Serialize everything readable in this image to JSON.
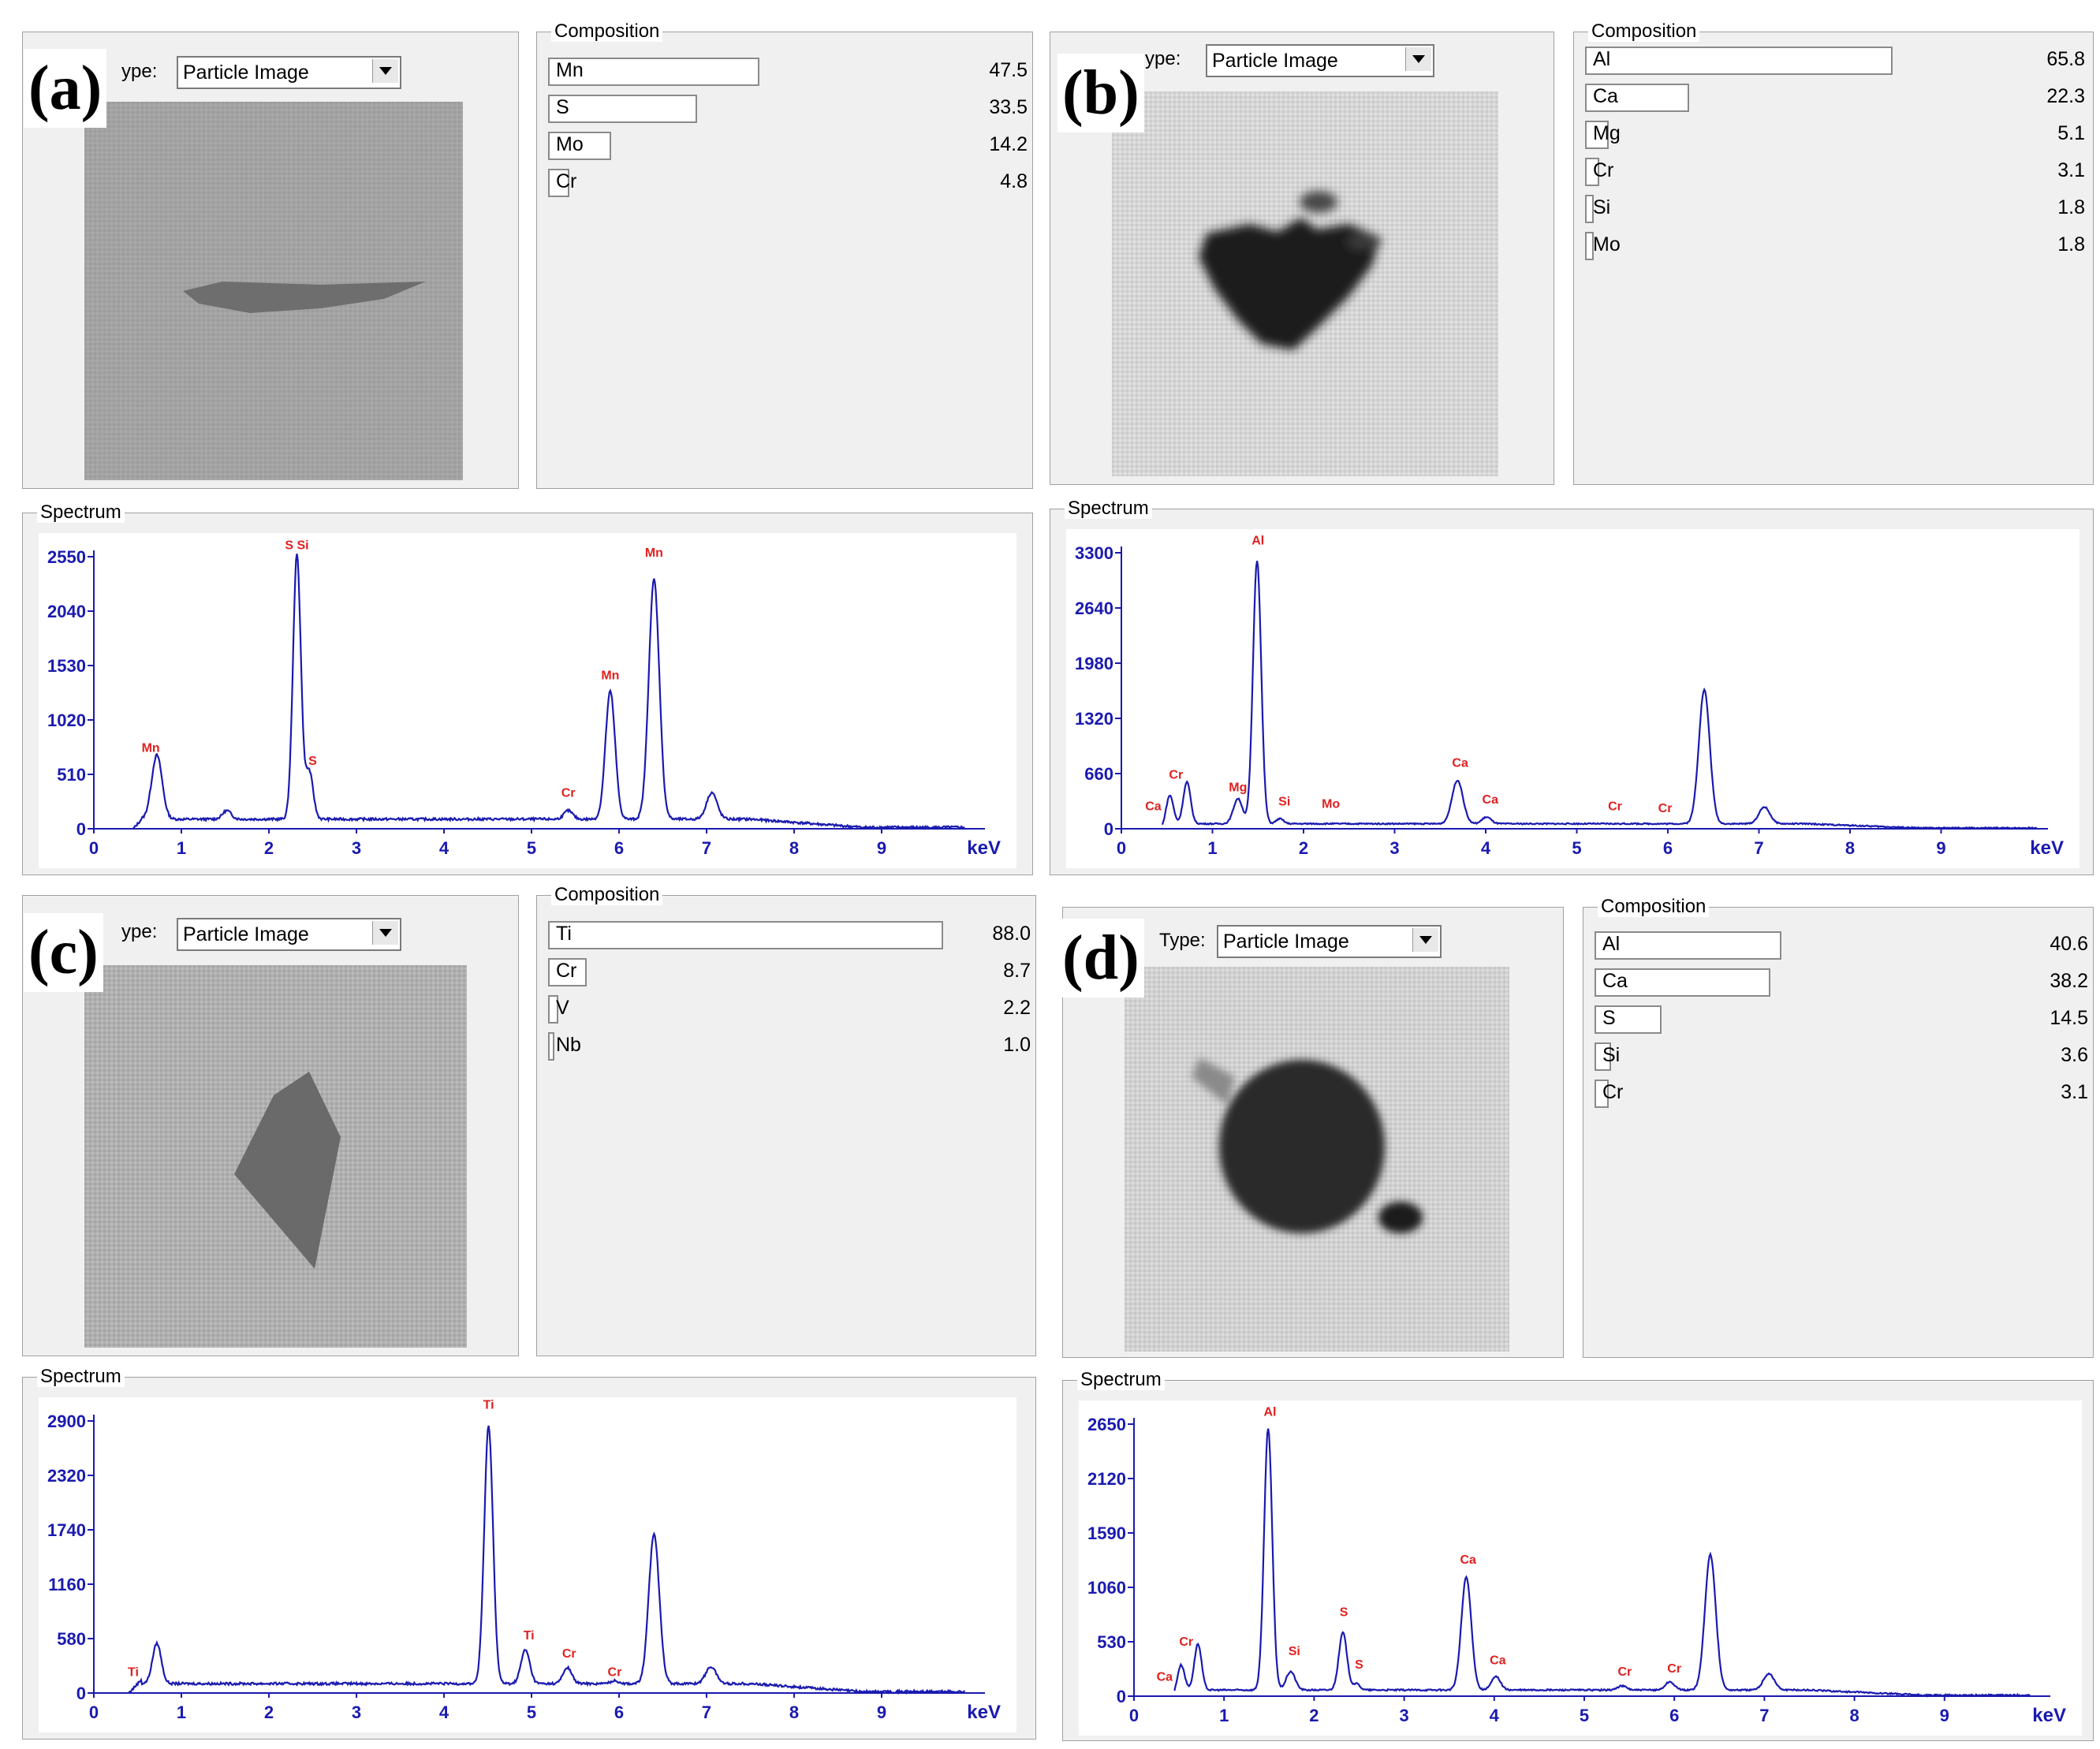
{
  "type_label_partial": "ype:",
  "type_label_full": "Type:",
  "dropdown_value": "Particle Image",
  "composition_label": "Composition",
  "spectrum_label": "Spectrum",
  "colors": {
    "axis": "#1a1ab0",
    "peak_label": "#e02020",
    "line": "#1a1ab0"
  },
  "icons": {
    "dropdown": "chevron-down-icon"
  },
  "panels": [
    {
      "label": "(a)",
      "type_label_key": "partial",
      "particle": "elongated sliver",
      "composition": [
        {
          "element": "Mn",
          "value": "47.5"
        },
        {
          "element": "S",
          "value": "33.5"
        },
        {
          "element": "Mo",
          "value": "14.2"
        },
        {
          "element": "Cr",
          "value": "4.8"
        }
      ]
    },
    {
      "label": "(b)",
      "type_label_key": "partial",
      "particle": "dark irregular",
      "composition": [
        {
          "element": "Al",
          "value": "65.8"
        },
        {
          "element": "Ca",
          "value": "22.3"
        },
        {
          "element": "Mg",
          "value": "5.1"
        },
        {
          "element": "Cr",
          "value": "3.1"
        },
        {
          "element": "Si",
          "value": "1.8"
        },
        {
          "element": "Mo",
          "value": "1.8"
        }
      ]
    },
    {
      "label": "(c)",
      "type_label_key": "partial",
      "particle": "gray polygon",
      "composition": [
        {
          "element": "Ti",
          "value": "88.0"
        },
        {
          "element": "Cr",
          "value": "8.7"
        },
        {
          "element": "V",
          "value": "2.2"
        },
        {
          "element": "Nb",
          "value": "1.0"
        }
      ]
    },
    {
      "label": "(d)",
      "type_label_key": "full",
      "particle": "dark round",
      "composition": [
        {
          "element": "Al",
          "value": "40.6"
        },
        {
          "element": "Ca",
          "value": "38.2"
        },
        {
          "element": "S",
          "value": "14.5"
        },
        {
          "element": "Si",
          "value": "3.6"
        },
        {
          "element": "Cr",
          "value": "3.1"
        }
      ]
    }
  ],
  "chart_data": [
    {
      "type": "line",
      "title": "",
      "xlabel": "keV",
      "ylabel": "",
      "xlim": [
        0,
        10
      ],
      "ylim": [
        0,
        2550
      ],
      "x_ticks": [
        "0",
        "1",
        "2",
        "3",
        "4",
        "5",
        "6",
        "7",
        "8",
        "9"
      ],
      "y_ticks": [
        "0",
        "510",
        "1020",
        "1530",
        "2040",
        "2550"
      ],
      "baseline": 90,
      "peaks": [
        {
          "x": 0.72,
          "y": 600,
          "w": 0.06
        },
        {
          "x": 1.52,
          "y": 80,
          "w": 0.05
        },
        {
          "x": 2.32,
          "y": 2480,
          "w": 0.045
        },
        {
          "x": 2.46,
          "y": 450,
          "w": 0.045
        },
        {
          "x": 5.42,
          "y": 80,
          "w": 0.05
        },
        {
          "x": 5.9,
          "y": 1200,
          "w": 0.055
        },
        {
          "x": 6.4,
          "y": 2250,
          "w": 0.06
        },
        {
          "x": 7.06,
          "y": 250,
          "w": 0.06
        }
      ],
      "annotations": [
        {
          "text": "Mn",
          "x": 0.65,
          "y": 720
        },
        {
          "text": "S Si",
          "x": 2.32,
          "y": 2620
        },
        {
          "text": "S",
          "x": 2.5,
          "y": 600
        },
        {
          "text": "Cr",
          "x": 5.42,
          "y": 300
        },
        {
          "text": "Mn",
          "x": 5.9,
          "y": 1400
        },
        {
          "text": "Mn",
          "x": 6.4,
          "y": 2550
        }
      ],
      "x_start": 0.45,
      "x_end": 9.95
    },
    {
      "type": "line",
      "title": "",
      "xlabel": "keV",
      "ylabel": "",
      "xlim": [
        0,
        10
      ],
      "ylim": [
        0,
        3300
      ],
      "x_ticks": [
        "0",
        "1",
        "2",
        "3",
        "4",
        "5",
        "6",
        "7",
        "8",
        "9"
      ],
      "y_ticks": [
        "0",
        "660",
        "1320",
        "1980",
        "2640",
        "3300"
      ],
      "baseline": 60,
      "peaks": [
        {
          "x": 0.53,
          "y": 350,
          "w": 0.04
        },
        {
          "x": 0.72,
          "y": 500,
          "w": 0.04
        },
        {
          "x": 1.28,
          "y": 300,
          "w": 0.05
        },
        {
          "x": 1.49,
          "y": 3150,
          "w": 0.045
        },
        {
          "x": 1.74,
          "y": 60,
          "w": 0.04
        },
        {
          "x": 3.69,
          "y": 520,
          "w": 0.06
        },
        {
          "x": 4.01,
          "y": 80,
          "w": 0.05
        },
        {
          "x": 6.4,
          "y": 1600,
          "w": 0.06
        },
        {
          "x": 7.06,
          "y": 200,
          "w": 0.06
        }
      ],
      "annotations": [
        {
          "text": "Ca",
          "x": 0.35,
          "y": 220
        },
        {
          "text": "Cr",
          "x": 0.6,
          "y": 600
        },
        {
          "text": "Mg",
          "x": 1.28,
          "y": 450
        },
        {
          "text": "Al",
          "x": 1.5,
          "y": 3400
        },
        {
          "text": "Si",
          "x": 1.79,
          "y": 280
        },
        {
          "text": "Mo",
          "x": 2.3,
          "y": 250
        },
        {
          "text": "Ca",
          "x": 3.72,
          "y": 740
        },
        {
          "text": "Ca",
          "x": 4.05,
          "y": 300
        },
        {
          "text": "Cr",
          "x": 5.42,
          "y": 220
        },
        {
          "text": "Cr",
          "x": 5.97,
          "y": 200
        }
      ],
      "x_start": 0.45,
      "x_end": 10.05
    },
    {
      "type": "line",
      "title": "",
      "xlabel": "keV",
      "ylabel": "",
      "xlim": [
        0,
        10
      ],
      "ylim": [
        0,
        2900
      ],
      "x_ticks": [
        "0",
        "1",
        "2",
        "3",
        "4",
        "5",
        "6",
        "7",
        "8",
        "9"
      ],
      "y_ticks": [
        "0",
        "580",
        "1160",
        "1740",
        "2320",
        "2900"
      ],
      "baseline": 100,
      "peaks": [
        {
          "x": 0.72,
          "y": 430,
          "w": 0.05
        },
        {
          "x": 4.51,
          "y": 2750,
          "w": 0.05
        },
        {
          "x": 4.93,
          "y": 360,
          "w": 0.05
        },
        {
          "x": 5.41,
          "y": 170,
          "w": 0.05
        },
        {
          "x": 5.95,
          "y": 30,
          "w": 0.05
        },
        {
          "x": 6.4,
          "y": 1600,
          "w": 0.06
        },
        {
          "x": 7.05,
          "y": 180,
          "w": 0.06
        }
      ],
      "annotations": [
        {
          "text": "Ti",
          "x": 0.45,
          "y": 180
        },
        {
          "text": "Ti",
          "x": 4.51,
          "y": 3030
        },
        {
          "text": "Ti",
          "x": 4.97,
          "y": 570
        },
        {
          "text": "Cr",
          "x": 5.43,
          "y": 380
        },
        {
          "text": "Cr",
          "x": 5.95,
          "y": 180
        }
      ],
      "x_start": 0.4,
      "x_end": 9.95
    },
    {
      "type": "line",
      "title": "",
      "xlabel": "keV",
      "ylabel": "",
      "xlim": [
        0,
        10
      ],
      "ylim": [
        0,
        2650
      ],
      "x_ticks": [
        "0",
        "1",
        "2",
        "3",
        "4",
        "5",
        "6",
        "7",
        "8",
        "9"
      ],
      "y_ticks": [
        "0",
        "530",
        "1060",
        "1590",
        "2120",
        "2650"
      ],
      "baseline": 60,
      "peaks": [
        {
          "x": 0.52,
          "y": 260,
          "w": 0.04
        },
        {
          "x": 0.71,
          "y": 450,
          "w": 0.04
        },
        {
          "x": 1.49,
          "y": 2550,
          "w": 0.045
        },
        {
          "x": 1.74,
          "y": 180,
          "w": 0.05
        },
        {
          "x": 2.32,
          "y": 560,
          "w": 0.045
        },
        {
          "x": 2.47,
          "y": 60,
          "w": 0.04
        },
        {
          "x": 3.69,
          "y": 1100,
          "w": 0.055
        },
        {
          "x": 4.02,
          "y": 130,
          "w": 0.05
        },
        {
          "x": 5.42,
          "y": 40,
          "w": 0.05
        },
        {
          "x": 5.95,
          "y": 80,
          "w": 0.05
        },
        {
          "x": 6.4,
          "y": 1320,
          "w": 0.06
        },
        {
          "x": 7.05,
          "y": 160,
          "w": 0.06
        }
      ],
      "annotations": [
        {
          "text": "Ca",
          "x": 0.34,
          "y": 150
        },
        {
          "text": "Cr",
          "x": 0.58,
          "y": 490
        },
        {
          "text": "Al",
          "x": 1.51,
          "y": 2730
        },
        {
          "text": "Si",
          "x": 1.78,
          "y": 400
        },
        {
          "text": "S",
          "x": 2.33,
          "y": 780
        },
        {
          "text": "S",
          "x": 2.5,
          "y": 270
        },
        {
          "text": "Ca",
          "x": 3.71,
          "y": 1290
        },
        {
          "text": "Ca",
          "x": 4.04,
          "y": 310
        },
        {
          "text": "Cr",
          "x": 5.45,
          "y": 200
        },
        {
          "text": "Cr",
          "x": 6.0,
          "y": 230
        }
      ],
      "x_start": 0.45,
      "x_end": 9.95
    }
  ]
}
